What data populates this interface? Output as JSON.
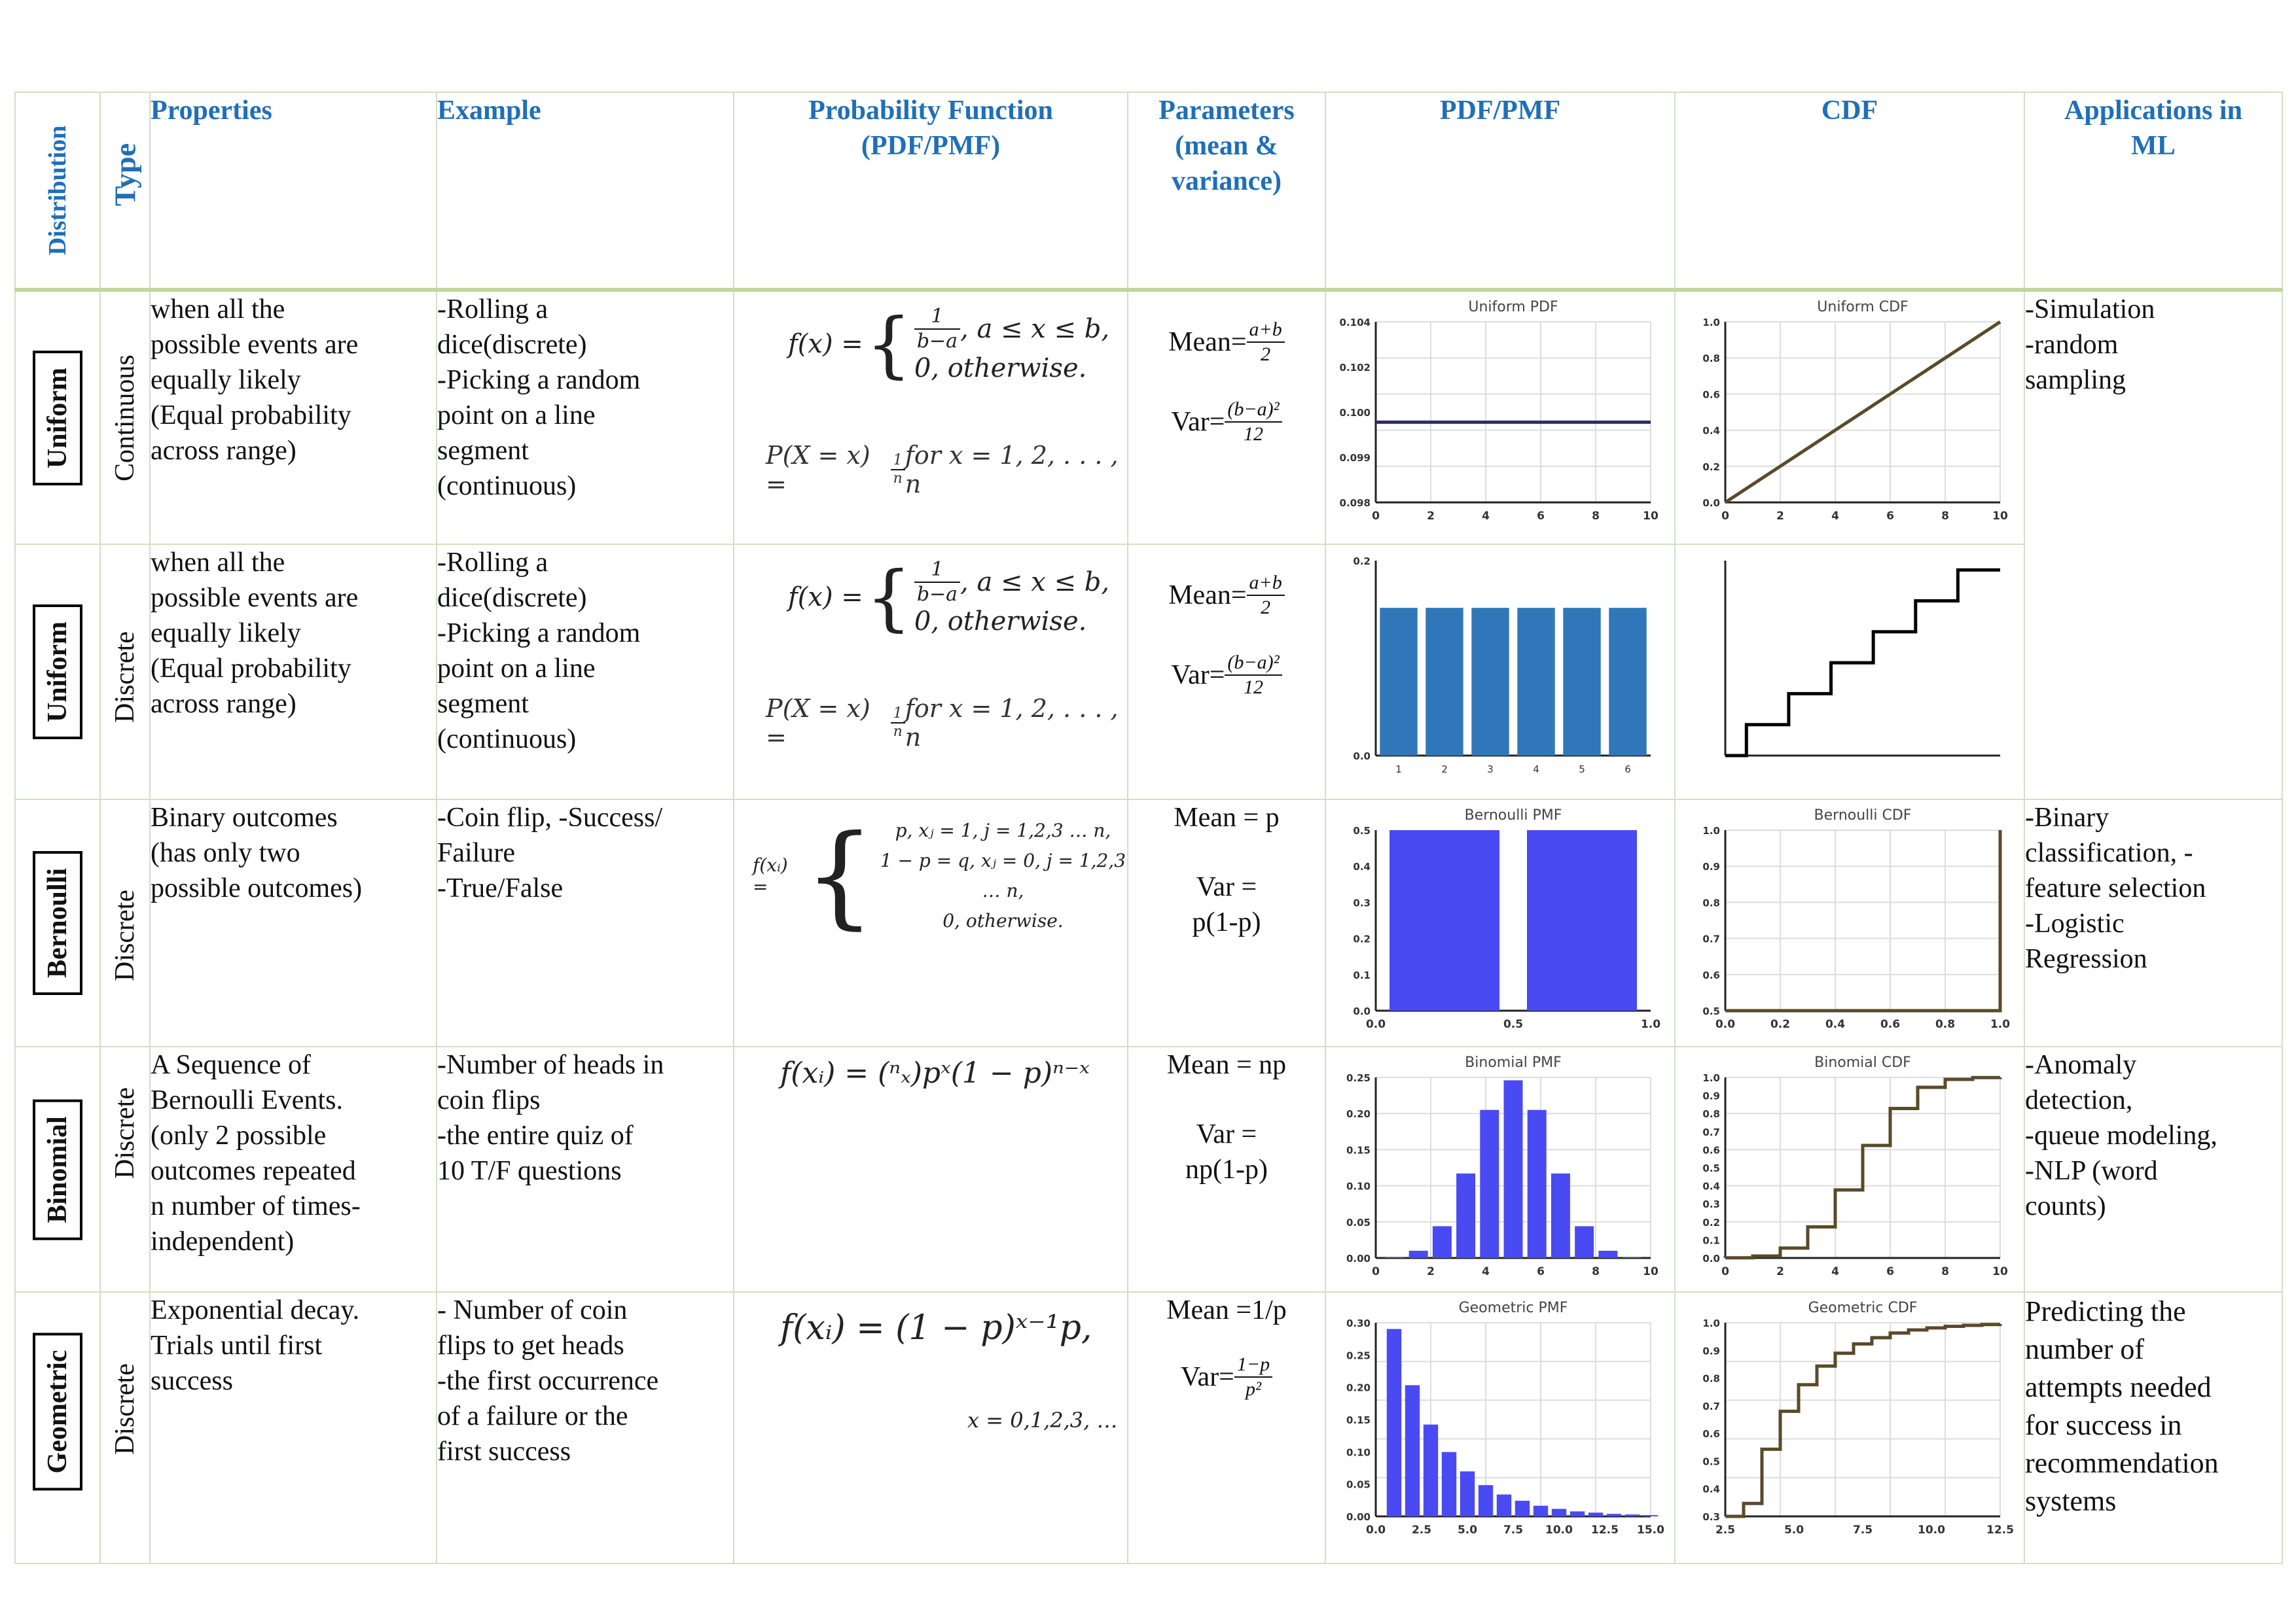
{
  "headers": {
    "distribution": "Distribution",
    "type": "Type",
    "properties": "Properties",
    "example": "Example",
    "probability_function": [
      "Probability Function",
      "(PDF/PMF)"
    ],
    "parameters": [
      "Parameters",
      "(mean &",
      "variance)"
    ],
    "pdf_pmf": "PDF/PMF",
    "cdf": "CDF",
    "applications": [
      "Applications in",
      "ML"
    ]
  },
  "rows": [
    {
      "distribution": "Uniform",
      "type": "Continuous",
      "properties": [
        "when all the",
        "possible events are",
        "equally likely",
        "(Equal probability",
        "across range)"
      ],
      "example": [
        "-Rolling a",
        "dice(discrete)",
        "-Picking a random",
        "point on a line",
        "segment",
        "(continuous)"
      ],
      "formula": {
        "lhs": "f(x) = ",
        "case1_frac": [
          "1",
          "b−a"
        ],
        "case1_cond": ",    a ≤ x ≤ b,",
        "case2": "0,     otherwise.",
        "pmf": "P(X = x) = ",
        "pmf_frac": [
          "1",
          "n"
        ],
        "pmf_tail": " for x = 1, 2, . . . , n"
      },
      "mean_label": "Mean=",
      "mean_frac": [
        "a+b",
        "2"
      ],
      "var_label": "Var=",
      "var_frac": [
        "(b−a)²",
        "12"
      ],
      "applications": [
        "-Simulation",
        "-random",
        "sampling"
      ]
    },
    {
      "distribution": "Uniform",
      "type": "Discrete",
      "properties": [
        "when all the",
        "possible events are",
        "equally likely",
        "(Equal probability",
        "across range)"
      ],
      "example": [
        "-Rolling a",
        "dice(discrete)",
        "-Picking a random",
        "point on a line",
        "segment",
        "(continuous)"
      ],
      "formula": {
        "lhs": "f(x) = ",
        "case1_frac": [
          "1",
          "b−a"
        ],
        "case1_cond": ",    a ≤ x ≤ b,",
        "case2": "0,     otherwise.",
        "pmf": "P(X = x) = ",
        "pmf_frac": [
          "1",
          "n"
        ],
        "pmf_tail": " for x = 1, 2, . . . , n"
      },
      "mean_label": "Mean=",
      "mean_frac": [
        "a+b",
        "2"
      ],
      "var_label": "Var=",
      "var_frac": [
        "(b−a)²",
        "12"
      ]
    },
    {
      "distribution": "Bernoulli",
      "type": "Discrete",
      "properties": [
        "Binary outcomes",
        "(has only two",
        "possible outcomes)"
      ],
      "example": [
        "-Coin flip, -Success/",
        "Failure",
        "-True/False"
      ],
      "formula": {
        "lhs": "f(xᵢ) = ",
        "c1": "p,   xⱼ = 1, j = 1,2,3 … n,",
        "c2": "1 − p = q,   xⱼ = 0, j = 1,2,3 … n,",
        "c3": "0,   otherwise."
      },
      "mean": "Mean = p",
      "var": [
        "Var =",
        "p(1-p)"
      ],
      "applications": [
        "-Binary",
        "classification, -",
        "feature selection",
        "-Logistic",
        "Regression"
      ]
    },
    {
      "distribution": "Binomial",
      "type": "Discrete",
      "properties": [
        "A Sequence of",
        "Bernoulli Events.",
        "(only 2 possible",
        "outcomes repeated",
        "n number of times-",
        "independent)"
      ],
      "example": [
        "-Number of heads in",
        "coin flips",
        "-the entire quiz of",
        "10 T/F questions"
      ],
      "formula": {
        "text": "f(xᵢ) = (ⁿₓ)pˣ(1 − p)ⁿ⁻ˣ"
      },
      "mean": "Mean = np",
      "var": [
        "Var =",
        "np(1-p)"
      ],
      "applications": [
        "-Anomaly",
        "detection,",
        "-queue modeling,",
        "-NLP (word",
        "counts)"
      ]
    },
    {
      "distribution": "Geometric",
      "type": "Discrete",
      "properties": [
        "Exponential decay.",
        "Trials until first",
        "success"
      ],
      "example": [
        "- Number of coin",
        "flips to get heads",
        "-the first occurrence",
        "of a failure or the",
        "first success"
      ],
      "formula": {
        "text": "f(xᵢ) = (1 − p)ˣ⁻¹p,",
        "domain": "x = 0,1,2,3, …"
      },
      "mean": "Mean =1/p",
      "var_label": "Var=",
      "var_frac": [
        "1−p",
        "p²"
      ],
      "applications": [
        "Predicting the",
        "number of",
        "attempts needed",
        "for success in",
        "recommendation",
        "systems"
      ]
    }
  ],
  "charts": {
    "uniform_pdf": {
      "type": "line",
      "title": "Uniform PDF",
      "x": [
        0,
        10
      ],
      "y": [
        0.1,
        0.1
      ],
      "xlim": [
        0,
        10
      ],
      "ylim": [
        0.096,
        0.105
      ],
      "xticks": [
        "0",
        "2",
        "4",
        "6",
        "8",
        "10"
      ],
      "yticks": [
        "0.098",
        "0.099",
        "0.100",
        "0.102",
        "0.104"
      ],
      "grid": true,
      "color": "#2b2b6e"
    },
    "uniform_cdf": {
      "type": "line",
      "title": "Uniform CDF",
      "x": [
        0,
        10
      ],
      "y": [
        0,
        1
      ],
      "xlim": [
        0,
        10
      ],
      "ylim": [
        0,
        1
      ],
      "xticks": [
        "0",
        "2",
        "4",
        "6",
        "8",
        "10"
      ],
      "yticks": [
        "0.0",
        "0.2",
        "0.4",
        "0.6",
        "0.8",
        "1.0"
      ],
      "grid": true,
      "color": "#5a4a2a"
    },
    "discrete_uniform_pmf": {
      "type": "bar",
      "categories": [
        "1",
        "2",
        "3",
        "4",
        "5",
        "6"
      ],
      "values": [
        0.1667,
        0.1667,
        0.1667,
        0.1667,
        0.1667,
        0.1667
      ],
      "ylim": [
        0,
        0.22
      ],
      "yticks": [
        "0.0",
        "0.2"
      ],
      "color": "#2f77b8"
    },
    "discrete_uniform_cdf": {
      "type": "step",
      "x": [
        1,
        2,
        3,
        4,
        5,
        6
      ],
      "y": [
        0.1667,
        0.3333,
        0.5,
        0.6667,
        0.8333,
        1.0
      ],
      "xlim": [
        0.5,
        7
      ],
      "ylim": [
        0,
        1.05
      ],
      "color": "#000000"
    },
    "bernoulli_pmf": {
      "type": "bar",
      "title": "Bernoulli PMF",
      "categories": [
        0,
        1
      ],
      "values": [
        0.5,
        0.5
      ],
      "xlim": [
        -0.5,
        1.5
      ],
      "ylim": [
        0,
        0.5
      ],
      "xticks": [
        "0.0",
        "0.5",
        "1.0"
      ],
      "yticks": [
        "0.0",
        "0.1",
        "0.2",
        "0.3",
        "0.4",
        "0.5"
      ],
      "color": "#4a4af2"
    },
    "bernoulli_cdf": {
      "type": "line",
      "title": "Bernoulli CDF",
      "x": [
        0,
        0.99,
        1,
        1
      ],
      "y": [
        0.5,
        0.5,
        0.5,
        1.0
      ],
      "xlim": [
        0,
        1
      ],
      "ylim": [
        0.5,
        1.0
      ],
      "xticks": [
        "0.0",
        "0.2",
        "0.4",
        "0.6",
        "0.8",
        "1.0"
      ],
      "yticks": [
        "0.5",
        "0.6",
        "0.7",
        "0.8",
        "0.9",
        "1.0"
      ],
      "grid": true,
      "color": "#5a4a2a"
    },
    "binomial_pmf": {
      "type": "bar",
      "title": "Binomial PMF",
      "categories": [
        0,
        1,
        2,
        3,
        4,
        5,
        6,
        7,
        8,
        9,
        10
      ],
      "values": [
        0.001,
        0.01,
        0.044,
        0.117,
        0.205,
        0.246,
        0.205,
        0.117,
        0.044,
        0.01,
        0.001
      ],
      "xlim": [
        -0.8,
        10.8
      ],
      "ylim": [
        0,
        0.25
      ],
      "xticks": [
        "0",
        "2",
        "4",
        "6",
        "8",
        "10"
      ],
      "yticks": [
        "0.00",
        "0.05",
        "0.10",
        "0.15",
        "0.20",
        "0.25"
      ],
      "grid": true,
      "color": "#4a4af2"
    },
    "binomial_cdf": {
      "type": "step",
      "title": "Binomial CDF",
      "x": [
        0,
        1,
        2,
        3,
        4,
        5,
        6,
        7,
        8,
        9,
        10
      ],
      "y": [
        0.001,
        0.011,
        0.055,
        0.172,
        0.377,
        0.623,
        0.828,
        0.945,
        0.989,
        0.999,
        1.0
      ],
      "xlim": [
        0,
        10
      ],
      "ylim": [
        0,
        1.0
      ],
      "xticks": [
        "0",
        "2",
        "4",
        "6",
        "8",
        "10"
      ],
      "yticks": [
        "0.0",
        "0.1",
        "0.2",
        "0.3",
        "0.4",
        "0.5",
        "0.6",
        "0.7",
        "0.8",
        "0.9",
        "1.0"
      ],
      "grid": true,
      "color": "#5a4a2a"
    },
    "geometric_pmf": {
      "type": "bar",
      "title": "Geometric PMF",
      "categories": [
        1,
        2,
        3,
        4,
        5,
        6,
        7,
        8,
        9,
        10,
        11,
        12,
        13,
        14,
        15
      ],
      "values": [
        0.3,
        0.21,
        0.147,
        0.103,
        0.072,
        0.05,
        0.035,
        0.025,
        0.017,
        0.012,
        0.008,
        0.006,
        0.004,
        0.003,
        0.002
      ],
      "xlim": [
        0,
        15
      ],
      "ylim": [
        0,
        0.31
      ],
      "xticks": [
        "0.0",
        "2.5",
        "5.0",
        "7.5",
        "10.0",
        "12.5",
        "15.0"
      ],
      "yticks": [
        "0.00",
        "0.05",
        "0.10",
        "0.15",
        "0.20",
        "0.25",
        "0.30"
      ],
      "grid": true,
      "color": "#4a4af2"
    },
    "geometric_cdf": {
      "type": "step",
      "title": "Geometric CDF",
      "x": [
        1,
        2,
        3,
        4,
        5,
        6,
        7,
        8,
        9,
        10,
        11,
        12,
        13,
        14,
        15
      ],
      "y": [
        0.3,
        0.51,
        0.657,
        0.76,
        0.832,
        0.882,
        0.918,
        0.942,
        0.96,
        0.972,
        0.98,
        0.986,
        0.99,
        0.993,
        0.995
      ],
      "xlim": [
        0,
        15
      ],
      "ylim": [
        0.25,
        1.0
      ],
      "xticks": [
        "2.5",
        "5.0",
        "7.5",
        "10.0",
        "12.5"
      ],
      "yticks": [
        "0.3",
        "0.4",
        "0.5",
        "0.6",
        "0.7",
        "0.8",
        "0.9",
        "1.0"
      ],
      "grid": true,
      "color": "#5a4a2a"
    }
  }
}
